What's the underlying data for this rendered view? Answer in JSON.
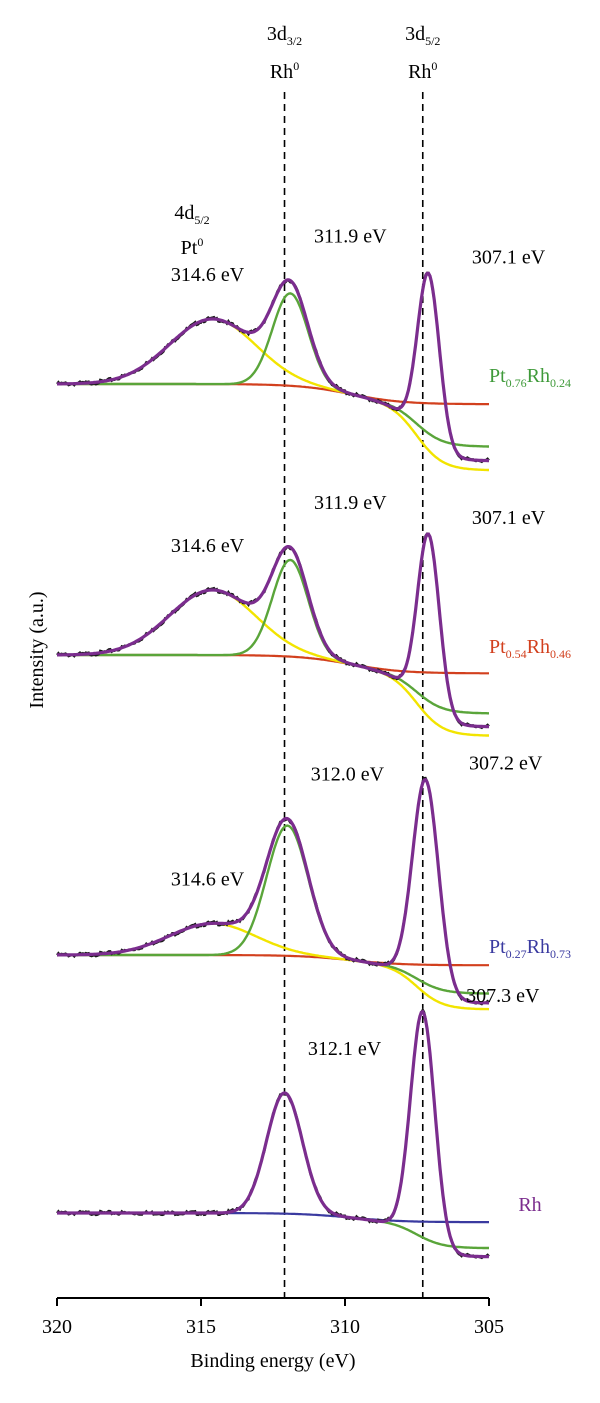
{
  "chart_data": {
    "type": "line",
    "title": "",
    "xlabel": "Binding energy (eV)",
    "ylabel": "Intensity (a.u.)",
    "xlim": [
      320,
      305
    ],
    "x_reversed": true,
    "xticks": [
      {
        "value": 320,
        "label": "320"
      },
      {
        "value": 315,
        "label": "315"
      },
      {
        "value": 310,
        "label": "310"
      },
      {
        "value": 305,
        "label": "305"
      }
    ],
    "reference_lines": [
      {
        "x": 312.1,
        "label_main": "3d",
        "label_sub": "3/2",
        "label_el": "Rh",
        "label_sup": "0"
      },
      {
        "x": 307.3,
        "label_main": "3d",
        "label_sub": "5/2",
        "label_el": "Rh",
        "label_sup": "0"
      }
    ],
    "pt_label": {
      "main": "4d",
      "sub": "5/2",
      "el": "Pt",
      "sup": "0"
    },
    "colors": {
      "experimental": "#1a1a1a",
      "envelope": "#7b2d8e",
      "pt_component": "#f2e400",
      "rh_component": "#5aa53a",
      "background": "#d2401e",
      "background_alt": "#3a3aa0",
      "label_pt076": "#3f9a3a",
      "label_pt054": "#d2401e",
      "label_pt027": "#3a3aa0",
      "label_rh": "#7b2d8e"
    },
    "panels": [
      {
        "sample": {
          "a": "Pt",
          "a_sub": "0.76",
          "b": "Rh",
          "b_sub": "0.24"
        },
        "label_color": "label_pt076",
        "offset": 3.0,
        "baseline": 0.0,
        "tail": -0.9,
        "bg_drop": 0.55,
        "bg_color": "background",
        "peaks": [
          {
            "center": 314.6,
            "height": 0.62,
            "width": 1.5,
            "component": "pt",
            "label": "314.6 eV"
          },
          {
            "center": 311.9,
            "height": 0.88,
            "width": 0.62,
            "component": "rh",
            "label": "311.9 eV"
          },
          {
            "center": 307.1,
            "height": 1.62,
            "width": 0.38,
            "component": "rh",
            "label": "307.1 eV"
          }
        ]
      },
      {
        "sample": {
          "a": "Pt",
          "a_sub": "0.54",
          "b": "Rh",
          "b_sub": "0.46"
        },
        "label_color": "label_pt054",
        "offset": 2.0,
        "baseline": 0.0,
        "tail": -0.85,
        "bg_drop": 0.5,
        "bg_color": "background",
        "peaks": [
          {
            "center": 314.6,
            "height": 0.62,
            "width": 1.5,
            "component": "pt",
            "label": "314.6 eV"
          },
          {
            "center": 311.9,
            "height": 0.92,
            "width": 0.62,
            "component": "rh",
            "label": "311.9 eV"
          },
          {
            "center": 307.1,
            "height": 1.68,
            "width": 0.38,
            "component": "rh",
            "label": "307.1 eV"
          }
        ]
      },
      {
        "sample": {
          "a": "Pt",
          "a_sub": "0.27",
          "b": "Rh",
          "b_sub": "0.73"
        },
        "label_color": "label_pt027",
        "offset": 1.0,
        "baseline": 0.0,
        "tail": -0.6,
        "bg_drop": 0.28,
        "bg_color": "background",
        "peaks": [
          {
            "center": 314.6,
            "height": 0.3,
            "width": 1.5,
            "component": "pt",
            "label": "314.6 eV"
          },
          {
            "center": 312.0,
            "height": 1.24,
            "width": 0.72,
            "component": "rh",
            "label": "312.0 eV"
          },
          {
            "center": 307.2,
            "height": 2.0,
            "width": 0.45,
            "component": "rh",
            "label": "307.2 eV"
          }
        ]
      },
      {
        "sample": {
          "a": "Rh",
          "a_sub": "",
          "b": "",
          "b_sub": ""
        },
        "label_color": "label_rh",
        "offset": 0.0,
        "baseline": 0.0,
        "tail": -0.55,
        "bg_drop": 0.25,
        "bg_color": "background_alt",
        "peaks": [
          {
            "center": 312.1,
            "height": 1.15,
            "width": 0.62,
            "component": "rh",
            "label": "312.1 eV"
          },
          {
            "center": 307.3,
            "height": 2.2,
            "width": 0.42,
            "component": "rh",
            "label": "307.3 eV"
          }
        ]
      }
    ]
  }
}
